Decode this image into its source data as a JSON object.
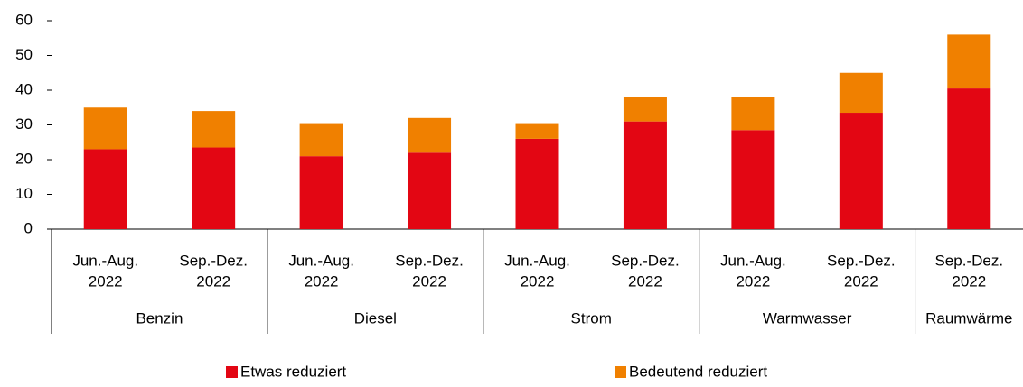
{
  "chart_data": {
    "type": "stacked_bar",
    "categories": [
      [
        "Jun.-Aug.",
        "2022"
      ],
      [
        "Sep.-Dez.",
        "2022"
      ],
      [
        "Jun.-Aug.",
        "2022"
      ],
      [
        "Sep.-Dez.",
        "2022"
      ],
      [
        "Jun.-Aug.",
        "2022"
      ],
      [
        "Sep.-Dez.",
        "2022"
      ],
      [
        "Jun.-Aug.",
        "2022"
      ],
      [
        "Sep.-Dez.",
        "2022"
      ],
      [
        "Sep.-Dez.",
        "2022"
      ]
    ],
    "groups": [
      "Benzin",
      "Benzin",
      "Diesel",
      "Diesel",
      "Strom",
      "Strom",
      "Warmwasser",
      "Warmwasser",
      "Raumwärme"
    ],
    "series": [
      {
        "name": "Etwas reduziert",
        "color": "#e30613",
        "values": [
          23,
          23.5,
          21,
          22,
          26,
          31,
          28.5,
          33.5,
          40.5
        ]
      },
      {
        "name": "Bedeutend reduziert",
        "color": "#f08000",
        "values": [
          12,
          10.5,
          9.5,
          10,
          4.5,
          7,
          9.5,
          11.5,
          15.5
        ]
      }
    ],
    "ylim": [
      0,
      60
    ],
    "yticks": [
      0,
      10,
      20,
      30,
      40,
      50,
      60
    ],
    "grid": false,
    "legend": "bottom"
  }
}
